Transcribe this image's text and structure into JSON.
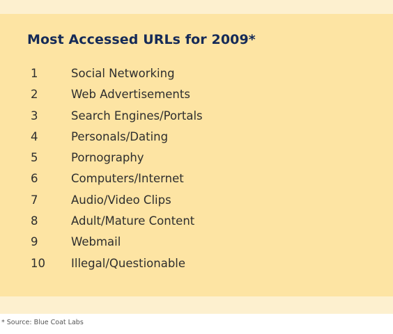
{
  "title": "Most Accessed URLs for 2009*",
  "items": [
    {
      "rank": "1",
      "label": "Social Networking"
    },
    {
      "rank": "2",
      "label": "Web Advertisements"
    },
    {
      "rank": "3",
      "label": "Search Engines/Portals"
    },
    {
      "rank": "4",
      "label": "Personals/Dating"
    },
    {
      "rank": "5",
      "label": "Pornography"
    },
    {
      "rank": "6",
      "label": "Computers/Internet"
    },
    {
      "rank": "7",
      "label": "Audio/Video Clips"
    },
    {
      "rank": "8",
      "label": "Adult/Mature Content"
    },
    {
      "rank": "9",
      "label": "Webmail"
    },
    {
      "rank": "10",
      "label": "Illegal/Questionable"
    }
  ],
  "footnote": "* Source: Blue Coat Labs",
  "colors": {
    "panel": "#fde4a3",
    "band": "#fdf0cf",
    "title": "#152a57",
    "text": "#2e2e2e"
  }
}
